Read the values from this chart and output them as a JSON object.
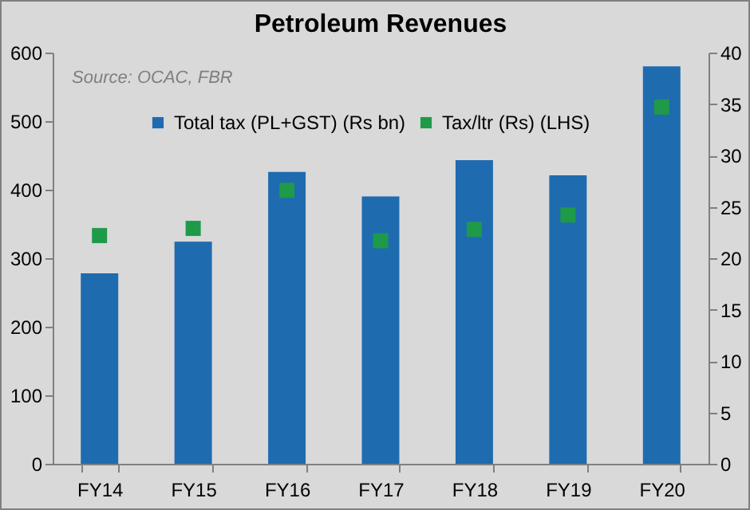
{
  "chart_data": {
    "type": "bar",
    "title": "Petroleum Revenues",
    "annotations": [
      "Source: OCAC, FBR"
    ],
    "categories": [
      "FY14",
      "FY15",
      "FY16",
      "FY17",
      "FY18",
      "FY19",
      "FY20"
    ],
    "series": [
      {
        "name": "Total tax (PL+GST) (Rs bn)",
        "color": "#1f6bb0",
        "values": [
          278,
          324,
          426,
          390,
          443,
          421,
          580
        ]
      },
      {
        "name": "Tax/ltr (Rs) (LHS)",
        "type": "scatter",
        "axis": "y2",
        "marker": "square",
        "color": "#1e9a48",
        "values": [
          22.2,
          22.9,
          26.6,
          21.7,
          22.8,
          24.2,
          34.7
        ]
      }
    ],
    "ylim": [
      0,
      600
    ],
    "yticks": [
      0,
      100,
      200,
      300,
      400,
      500,
      600
    ],
    "y2lim": [
      0,
      40
    ],
    "y2ticks": [
      0,
      5,
      10,
      15,
      20,
      25,
      30,
      35,
      40
    ],
    "legend": "top"
  }
}
